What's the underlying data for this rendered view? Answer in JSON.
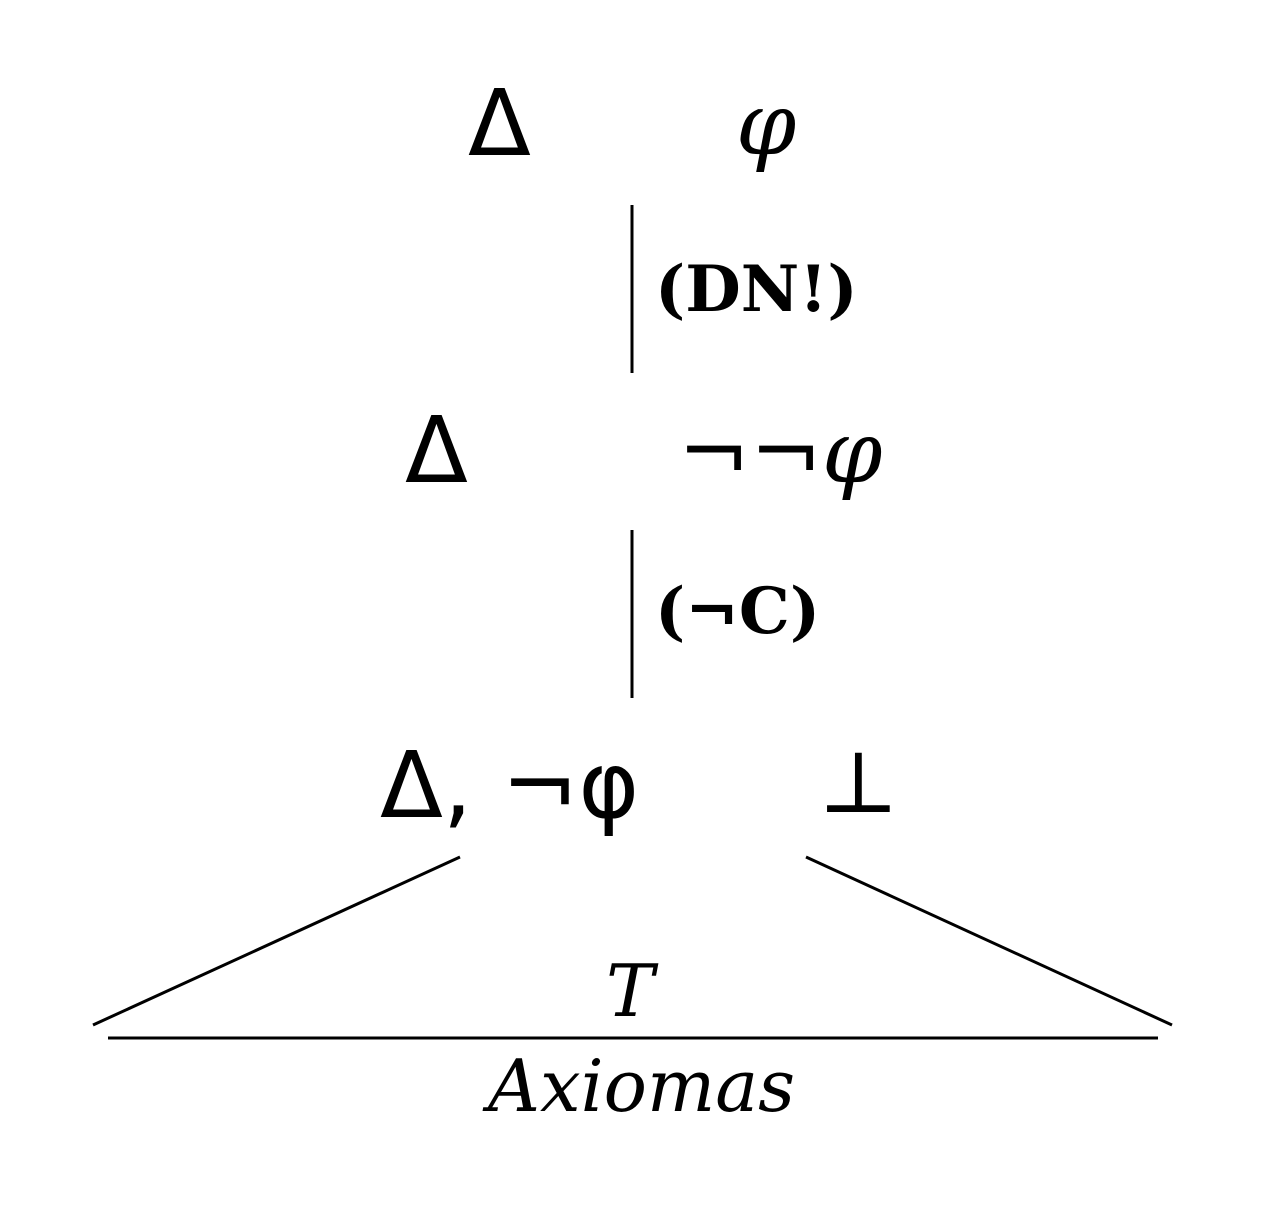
{
  "nodes": [
    {
      "context": "Δ",
      "formula": "φ"
    },
    {
      "context": "Δ",
      "formula": "¬¬φ"
    },
    {
      "context": "Δ, ¬φ",
      "formula": "⊥"
    }
  ],
  "rules": [
    {
      "label": "(DN!)"
    },
    {
      "label": "(¬C)"
    }
  ],
  "subtree_label": "T",
  "base_label": "Axiomas"
}
